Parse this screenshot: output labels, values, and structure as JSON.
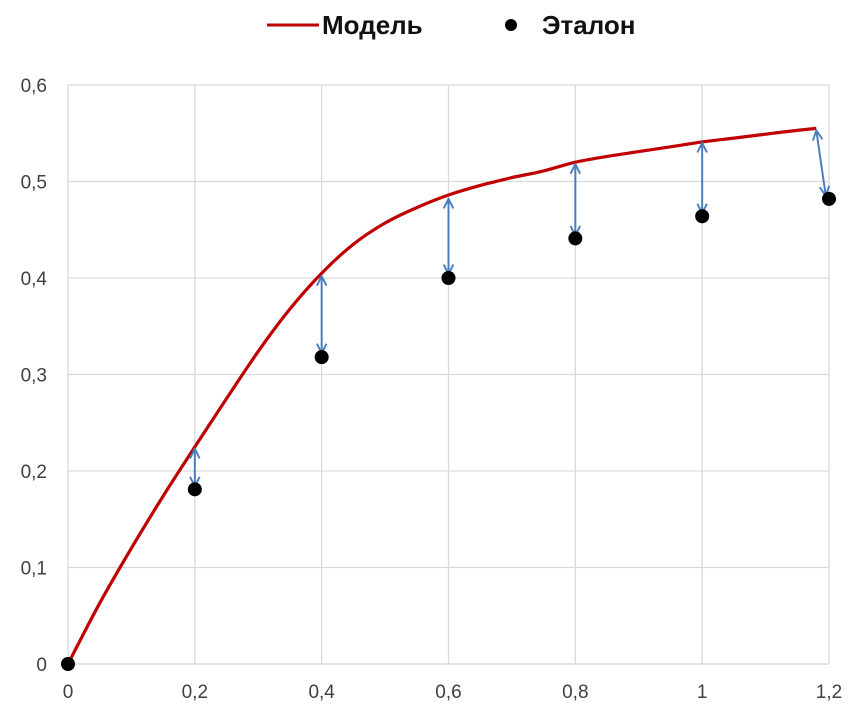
{
  "chart_data": {
    "type": "line",
    "title": "",
    "xlabel": "",
    "ylabel": "",
    "xlim": [
      0,
      1.2
    ],
    "ylim": [
      0,
      0.6
    ],
    "grid": true,
    "legend_position": "top-center",
    "x_ticks": [
      "0",
      "0,2",
      "0,4",
      "0,6",
      "0,8",
      "1",
      "1,2"
    ],
    "y_ticks": [
      "0",
      "0,1",
      "0,2",
      "0,3",
      "0,4",
      "0,5",
      "0,6"
    ],
    "series": [
      {
        "name": "Модель",
        "kind": "line",
        "color": "#c00000",
        "x": [
          0,
          0.05,
          0.1,
          0.15,
          0.2,
          0.25,
          0.3,
          0.35,
          0.4,
          0.45,
          0.5,
          0.55,
          0.6,
          0.65,
          0.7,
          0.75,
          0.8,
          0.85,
          0.9,
          0.95,
          1.0,
          1.05,
          1.1,
          1.15,
          1.18
        ],
        "y": [
          0,
          0.063,
          0.12,
          0.174,
          0.225,
          0.275,
          0.324,
          0.368,
          0.405,
          0.435,
          0.457,
          0.473,
          0.486,
          0.496,
          0.504,
          0.511,
          0.52,
          0.526,
          0.531,
          0.536,
          0.541,
          0.545,
          0.549,
          0.553,
          0.555
        ]
      },
      {
        "name": "Эталон",
        "kind": "scatter",
        "color": "#000000",
        "x": [
          0,
          0.2,
          0.4,
          0.6,
          0.8,
          1.0,
          1.2
        ],
        "y": [
          0,
          0.181,
          0.318,
          0.4,
          0.441,
          0.464,
          0.482
        ]
      }
    ],
    "annotations": {
      "type": "double-arrows",
      "color": "#4a7ebb",
      "items": [
        {
          "x1": 0.2,
          "y1": 0.223,
          "x2": 0.2,
          "y2": 0.184
        },
        {
          "x1": 0.4,
          "y1": 0.402,
          "x2": 0.4,
          "y2": 0.322
        },
        {
          "x1": 0.6,
          "y1": 0.482,
          "x2": 0.6,
          "y2": 0.404
        },
        {
          "x1": 0.8,
          "y1": 0.518,
          "x2": 0.8,
          "y2": 0.444
        },
        {
          "x1": 1.0,
          "y1": 0.54,
          "x2": 1.0,
          "y2": 0.467
        },
        {
          "x1": 1.18,
          "y1": 0.553,
          "x2": 1.195,
          "y2": 0.485
        }
      ]
    }
  }
}
